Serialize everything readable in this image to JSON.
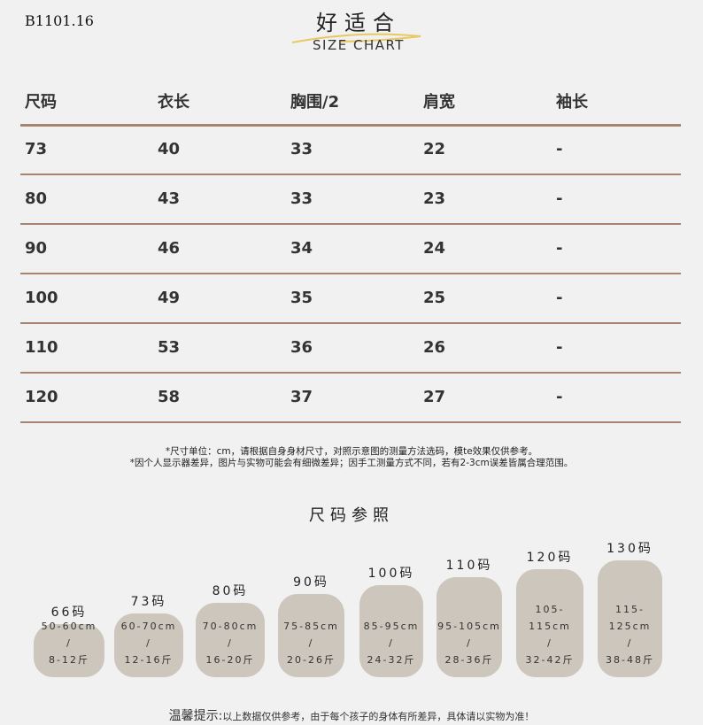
{
  "product_code": "B1101.16",
  "brand": {
    "name": "好适合",
    "subtitle": "SIZE CHART",
    "accent": "#e8c860"
  },
  "table": {
    "headers": [
      "尺码",
      "衣长",
      "胸围/2",
      "肩宽",
      "袖长"
    ],
    "rows": [
      [
        "73",
        "40",
        "33",
        "22",
        "-"
      ],
      [
        "80",
        "43",
        "33",
        "23",
        "-"
      ],
      [
        "90",
        "46",
        "34",
        "24",
        "-"
      ],
      [
        "100",
        "49",
        "35",
        "25",
        "-"
      ],
      [
        "110",
        "53",
        "36",
        "26",
        "-"
      ],
      [
        "120",
        "58",
        "37",
        "27",
        "-"
      ]
    ],
    "line_color": "#a58470"
  },
  "notes": [
    "*尺寸单位：cm，请根据自身身材尺寸，对照示意图的测量方法选码，模te效果仅供参考。",
    "*因个人显示器差异，图片与实物可能会有细微差异；因手工测量方式不同，若有2-3cm误差皆属合理范围。"
  ],
  "reference": {
    "title": "尺码参照",
    "card_color": "#ccc6bc",
    "sizes": [
      {
        "label": "66码",
        "height": "50-60cm",
        "sep": "/",
        "weight": "8-12斤"
      },
      {
        "label": "73码",
        "height": "60-70cm",
        "sep": "/",
        "weight": "12-16斤"
      },
      {
        "label": "80码",
        "height": "70-80cm",
        "sep": "/",
        "weight": "16-20斤"
      },
      {
        "label": "90码",
        "height": "75-85cm",
        "sep": "/",
        "weight": "20-26斤"
      },
      {
        "label": "100码",
        "height": "85-95cm",
        "sep": "/",
        "weight": "24-32斤"
      },
      {
        "label": "110码",
        "height": "95-105cm",
        "sep": "/",
        "weight": "28-36斤"
      },
      {
        "label": "120码",
        "height": "105-115cm",
        "sep": "/",
        "weight": "32-42斤"
      },
      {
        "label": "130码",
        "height": "115-125cm",
        "sep": "/",
        "weight": "38-48斤"
      }
    ]
  },
  "tip": {
    "label": "温馨提示:",
    "text": "以上数据仅供参考，由于每个孩子的身体有所差异，具体请以实物为准！"
  }
}
